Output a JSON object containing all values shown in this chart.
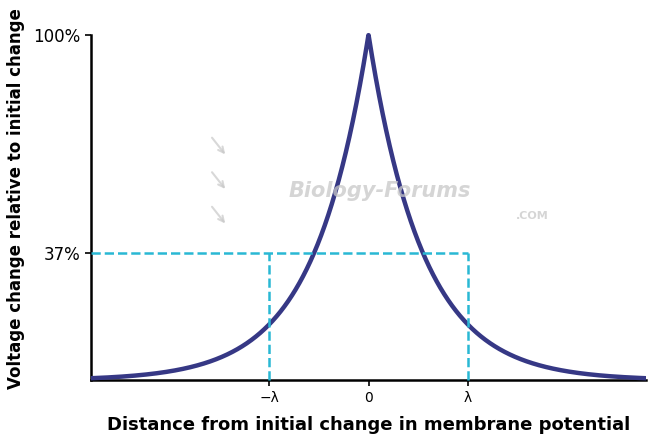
{
  "title": "",
  "xlabel": "Distance from initial change in membrane potential",
  "ylabel": "Voltage change relative to initial change",
  "curve_color": "#363885",
  "curve_linewidth": 3.2,
  "dashed_color": "#29b8d4",
  "dashed_linewidth": 1.8,
  "background_color": "#ffffff",
  "xtick_labels": [
    "−λ",
    "0",
    "λ"
  ],
  "xtick_values": [
    -1,
    0,
    1
  ],
  "xlim": [
    -2.8,
    2.8
  ],
  "ylim": [
    -3,
    108
  ],
  "lambda_val": 1.0,
  "decay_lambda": 0.55,
  "peak_value": 100,
  "xlabel_fontsize": 13,
  "ylabel_fontsize": 12,
  "tick_fontsize": 12
}
